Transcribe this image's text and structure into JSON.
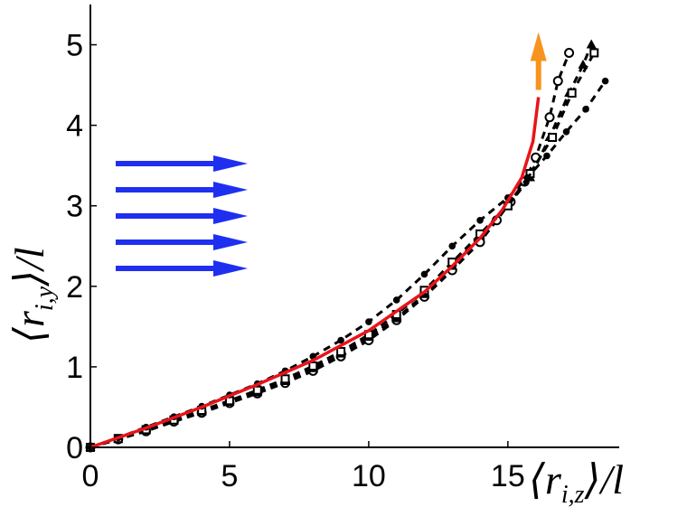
{
  "chart_data": {
    "type": "line",
    "title": "",
    "xlabel": "⟨r_{i,z}⟩/l",
    "ylabel": "⟨r_{i,y}⟩/l",
    "xlabel_parts": {
      "open": "⟨",
      "var": "r",
      "sub": "i,z",
      "close": "⟩",
      "tail": "/l"
    },
    "ylabel_parts": {
      "open": "⟨",
      "var": "r",
      "sub": "i,y",
      "close": "⟩",
      "tail": "/l"
    },
    "xlim": [
      0,
      19
    ],
    "ylim": [
      0,
      5.5
    ],
    "xticks": [
      "0",
      "5",
      "10",
      "15"
    ],
    "yticks": [
      "0",
      "1",
      "2",
      "3",
      "4",
      "5"
    ],
    "xtick_values": [
      0,
      5,
      10,
      15
    ],
    "ytick_values": [
      0,
      1,
      2,
      3,
      4,
      5
    ],
    "grid": false,
    "flow_arrows": {
      "count": 5,
      "color": "#1f2ff0",
      "direction": "right"
    },
    "tip_arrow": {
      "color": "#f7931e",
      "direction": "up"
    },
    "series": [
      {
        "style": "solid",
        "marker": "none",
        "color": "#e8141a",
        "x": [
          0,
          2,
          4,
          6,
          8,
          10,
          12,
          13,
          14,
          14.8,
          15.5,
          15.9,
          16.1
        ],
        "y": [
          0,
          0.24,
          0.5,
          0.78,
          1.08,
          1.45,
          1.93,
          2.25,
          2.6,
          2.95,
          3.35,
          3.8,
          4.35
        ]
      },
      {
        "style": "dashed",
        "marker": "circle",
        "color": "#000000",
        "x": [
          0,
          1,
          2,
          3,
          4,
          5,
          6,
          7,
          8,
          9,
          10,
          11,
          12,
          13,
          14,
          14.6,
          15.1,
          15.6,
          16,
          16.5,
          16.8,
          17.2
        ],
        "y": [
          0,
          0.1,
          0.2,
          0.32,
          0.43,
          0.55,
          0.67,
          0.8,
          0.95,
          1.13,
          1.33,
          1.58,
          1.87,
          2.2,
          2.55,
          2.82,
          3.05,
          3.3,
          3.6,
          4.1,
          4.55,
          4.9
        ]
      },
      {
        "style": "dashed",
        "marker": "triangle",
        "color": "#000000",
        "x": [
          0,
          1,
          2,
          3,
          4,
          5,
          6,
          7,
          8,
          9,
          10,
          11,
          12,
          13,
          14,
          15,
          15.8,
          16.5,
          17.2,
          17.7,
          18
        ],
        "y": [
          0,
          0.1,
          0.21,
          0.33,
          0.44,
          0.56,
          0.68,
          0.82,
          0.98,
          1.16,
          1.37,
          1.6,
          1.9,
          2.25,
          2.63,
          3.0,
          3.35,
          3.85,
          4.4,
          4.75,
          5.0
        ]
      },
      {
        "style": "dashed",
        "marker": "square",
        "color": "#000000",
        "x": [
          0,
          1,
          2,
          3,
          4,
          5,
          6,
          7,
          8,
          9,
          10,
          11,
          12,
          13,
          14,
          15,
          15.8,
          16.6,
          17.3,
          18.1
        ],
        "y": [
          0,
          0.11,
          0.22,
          0.34,
          0.46,
          0.58,
          0.71,
          0.85,
          1.01,
          1.19,
          1.4,
          1.65,
          1.95,
          2.3,
          2.65,
          3.0,
          3.4,
          3.85,
          4.4,
          4.9
        ]
      },
      {
        "style": "dashed",
        "marker": "dot",
        "color": "#000000",
        "x": [
          0,
          1,
          2,
          3,
          4,
          5,
          6,
          7,
          8,
          9,
          10,
          11,
          12,
          13,
          14,
          15,
          15.7,
          16.4,
          17.1,
          17.8,
          18.5
        ],
        "y": [
          0,
          0.12,
          0.25,
          0.38,
          0.51,
          0.65,
          0.79,
          0.95,
          1.13,
          1.33,
          1.56,
          1.83,
          2.15,
          2.5,
          2.82,
          3.1,
          3.35,
          3.62,
          3.92,
          4.2,
          4.55
        ]
      }
    ]
  }
}
